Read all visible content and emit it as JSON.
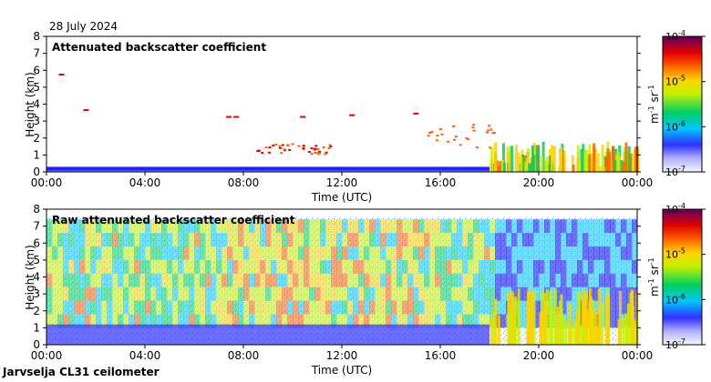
{
  "header": {
    "date": "28 July 2024"
  },
  "footer": {
    "station": "Jarvselja CL31 ceilometer"
  },
  "chart_data": [
    {
      "type": "heatmap",
      "title": "Attenuated backscatter coefficient",
      "xlabel": "Time (UTC)",
      "ylabel": "Height (km)",
      "xticks": [
        "00:00",
        "04:00",
        "08:00",
        "12:00",
        "16:00",
        "20:00",
        "00:00"
      ],
      "yticks": [
        0,
        1,
        2,
        3,
        4,
        5,
        6,
        7,
        8
      ],
      "ylim": [
        0,
        8
      ],
      "xlim_hours": [
        0,
        24
      ],
      "colorbar": {
        "label_units": "m",
        "label_exp1": "-1",
        "label_units2": "sr",
        "label_exp2": "-1",
        "ticks": [
          {
            "base": "10",
            "exp": "-4",
            "value": -4
          },
          {
            "base": "10",
            "exp": "-5",
            "value": -5
          },
          {
            "base": "10",
            "exp": "-6",
            "value": -6
          },
          {
            "base": "10",
            "exp": "-7",
            "value": -7
          }
        ]
      },
      "features": [
        {
          "name": "boundary layer",
          "hours": [
            0,
            18
          ],
          "top_km": 0.3
        },
        {
          "name": "low cloud/aerosol",
          "hours": [
            18,
            24
          ],
          "top_km": 1.5
        },
        {
          "name": "high cloud",
          "hours": [
            7.1,
            7.9
          ],
          "height_km": 3.3
        },
        {
          "name": "cumulus",
          "hours": [
            8.5,
            11.5
          ],
          "height_km": 1.4
        }
      ]
    },
    {
      "type": "heatmap",
      "title": "Raw attenuated backscatter coefficient",
      "xlabel": "Time (UTC)",
      "ylabel": "Height (km)",
      "xticks": [
        "00:00",
        "04:00",
        "08:00",
        "12:00",
        "16:00",
        "20:00",
        "00:00"
      ],
      "yticks": [
        0,
        1,
        2,
        3,
        4,
        5,
        6,
        7,
        8
      ],
      "ylim": [
        0,
        8
      ],
      "xlim_hours": [
        0,
        24
      ],
      "colorbar": {
        "label_units": "m",
        "label_exp1": "-1",
        "label_units2": "sr",
        "label_exp2": "-1",
        "ticks": [
          {
            "base": "10",
            "exp": "-4",
            "value": -4
          },
          {
            "base": "10",
            "exp": "-5",
            "value": -5
          },
          {
            "base": "10",
            "exp": "-6",
            "value": -6
          },
          {
            "base": "10",
            "exp": "-7",
            "value": -7
          }
        ]
      }
    }
  ]
}
